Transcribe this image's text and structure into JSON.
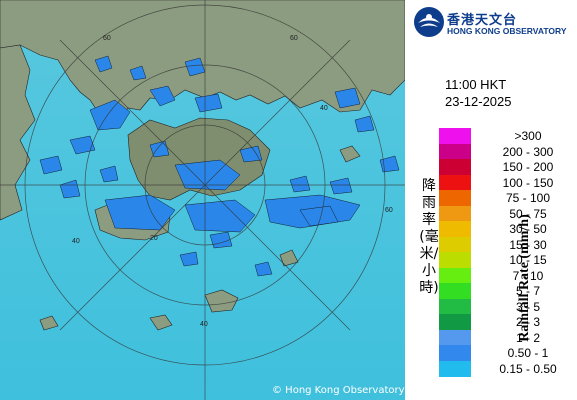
{
  "header": {
    "org_name_cn": "香港天文台",
    "org_name_en": "HONG KONG OBSERVATORY",
    "time": "11:00 HKT",
    "date": "23-12-2025"
  },
  "legend": {
    "title_cn": "降雨率(毫米/小時)",
    "title_en": "Rainfall Rate (mm/h)",
    "items": [
      {
        "label": ">300",
        "color": "#ee11ee"
      },
      {
        "label": "200 - 300",
        "color": "#cc0088"
      },
      {
        "label": "150 - 200",
        "color": "#cc0033"
      },
      {
        "label": "100 - 150",
        "color": "#ee1111"
      },
      {
        "label": "75 - 100",
        "color": "#ee6600"
      },
      {
        "label": "50 - 75",
        "color": "#ee9911"
      },
      {
        "label": "30 - 50",
        "color": "#eebb00"
      },
      {
        "label": "15 - 30",
        "color": "#ddcc00"
      },
      {
        "label": "10 - 15",
        "color": "#bbdd00"
      },
      {
        "label": "7 - 10",
        "color": "#66ee11"
      },
      {
        "label": "5 - 7",
        "color": "#33dd22"
      },
      {
        "label": "3 - 5",
        "color": "#22bb44"
      },
      {
        "label": "2 - 3",
        "color": "#119944"
      },
      {
        "label": "1 - 2",
        "color": "#5599ee"
      },
      {
        "label": "0.50 - 1",
        "color": "#3388ee"
      },
      {
        "label": "0.15 - 0.50",
        "color": "#22bbee"
      }
    ]
  },
  "map": {
    "sea_color": "#4cc3dc",
    "land_color": "#8a9a7a",
    "rain_color": "#2a86e8",
    "range_ring_labels": [
      "60",
      "60",
      "60",
      "40",
      "40",
      "40",
      "20"
    ],
    "copyright": "© Hong Kong Observatory"
  }
}
